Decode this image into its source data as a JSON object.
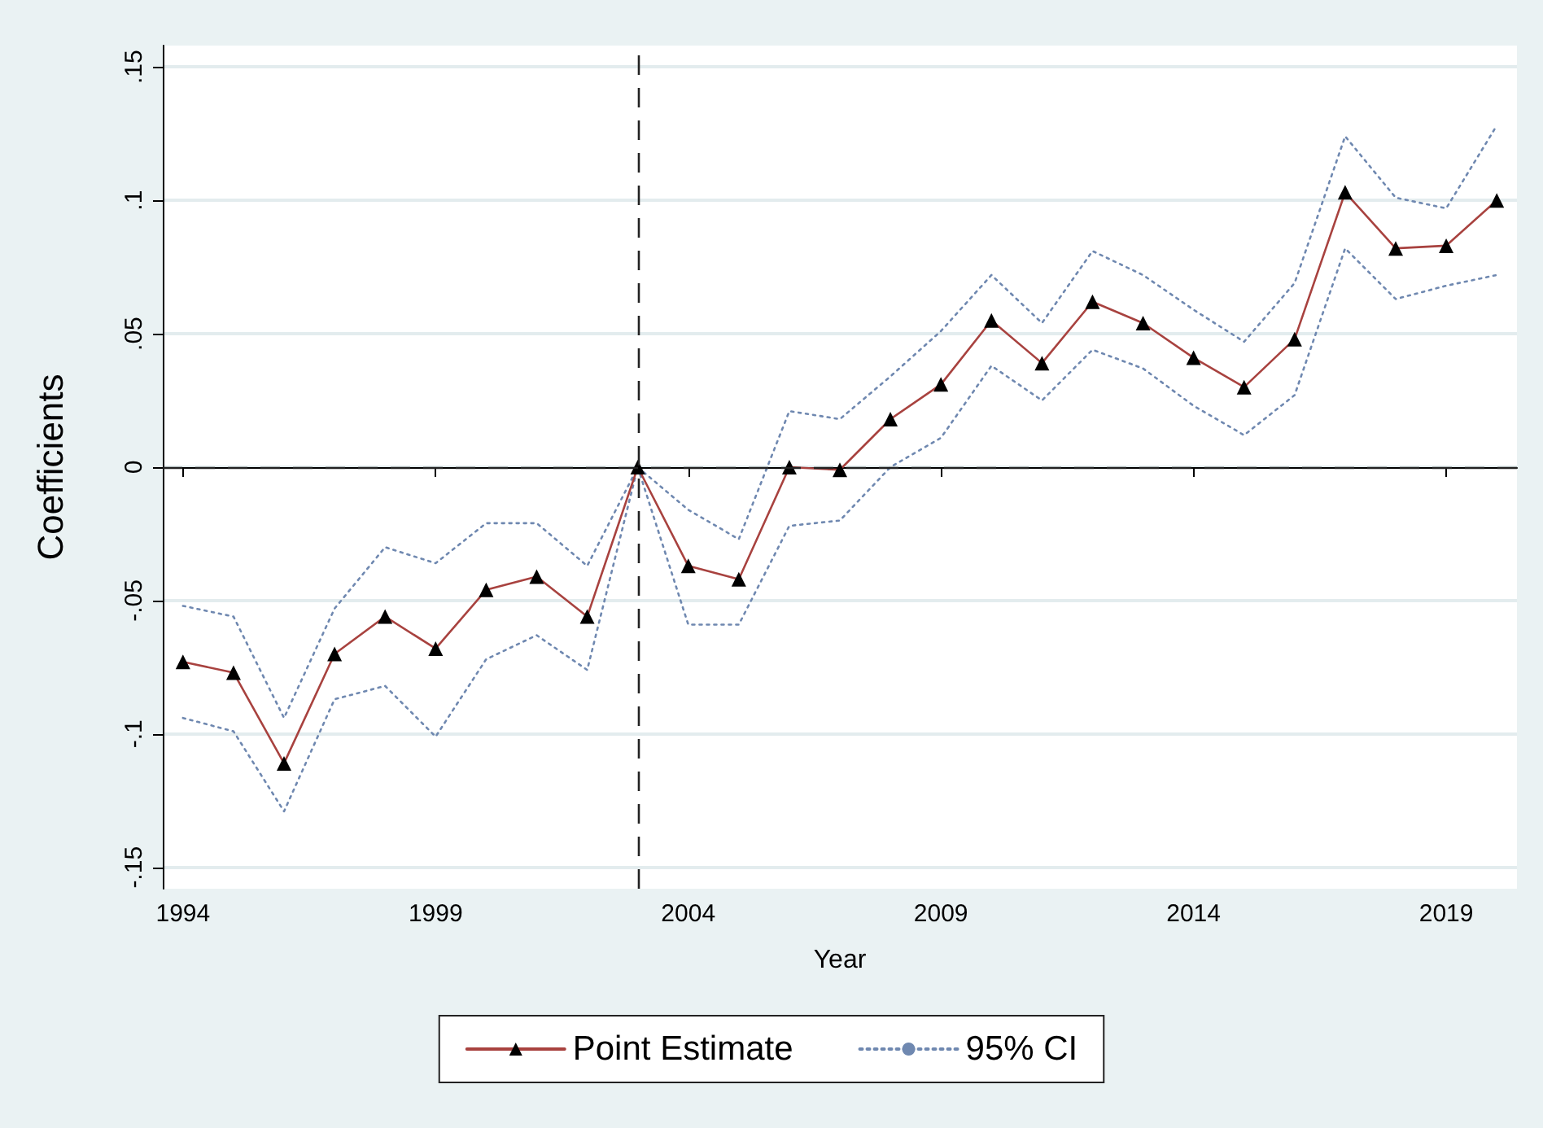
{
  "chart_data": {
    "type": "line",
    "xlabel": "Year",
    "ylabel": "Coefficients",
    "x": [
      1994,
      1995,
      1996,
      1997,
      1998,
      1999,
      2000,
      2001,
      2002,
      2003,
      2004,
      2005,
      2006,
      2007,
      2008,
      2009,
      2010,
      2011,
      2012,
      2013,
      2014,
      2015,
      2016,
      2017,
      2018,
      2019,
      2020
    ],
    "series": [
      {
        "name": "Point Estimate",
        "color": "#a8423f",
        "marker": "triangle",
        "line_style": "solid",
        "values": [
          -0.073,
          -0.077,
          -0.111,
          -0.07,
          -0.056,
          -0.068,
          -0.046,
          -0.041,
          -0.056,
          0,
          -0.037,
          -0.042,
          0,
          -0.001,
          0.018,
          0.031,
          0.055,
          0.039,
          0.062,
          0.054,
          0.041,
          0.03,
          0.048,
          0.103,
          0.082,
          0.083,
          0.1
        ]
      },
      {
        "name": "95% CI",
        "color": "#6f88b0",
        "marker": "none",
        "line_style": "dotted",
        "values": [
          -0.052,
          -0.056,
          -0.094,
          -0.053,
          -0.03,
          -0.036,
          -0.021,
          -0.021,
          -0.037,
          0,
          -0.016,
          -0.027,
          0.021,
          0.018,
          0.034,
          0.051,
          0.072,
          0.054,
          0.081,
          0.072,
          0.059,
          0.047,
          0.069,
          0.124,
          0.101,
          0.097,
          0.128
        ]
      },
      {
        "color": "#6f88b0",
        "marker": "none",
        "line_style": "dotted",
        "values": [
          -0.094,
          -0.099,
          -0.129,
          -0.087,
          -0.082,
          -0.101,
          -0.072,
          -0.063,
          -0.076,
          0,
          -0.059,
          -0.059,
          -0.022,
          -0.02,
          0,
          0.011,
          0.038,
          0.025,
          0.044,
          0.037,
          0.023,
          0.012,
          0.027,
          0.082,
          0.063,
          0.068,
          0.072
        ]
      }
    ],
    "xlim": [
      1993.6,
      2020.4
    ],
    "xticks": [
      1994,
      1999,
      2004,
      2009,
      2014,
      2019
    ],
    "ylim": [
      -0.158,
      0.158
    ],
    "yticks": [
      {
        "value": -0.15,
        "label": "-.15"
      },
      {
        "value": -0.1,
        "label": "-.1"
      },
      {
        "value": -0.05,
        "label": "-.05"
      },
      {
        "value": 0,
        "label": "0"
      },
      {
        "value": 0.05,
        "label": ".05"
      },
      {
        "value": 0.1,
        "label": ".1"
      },
      {
        "value": 0.15,
        "label": ".15"
      }
    ],
    "ref_lines": [
      {
        "axis": "x",
        "value": 2003,
        "color": "#222222",
        "line_style": "dashed"
      },
      {
        "axis": "y",
        "value": 0,
        "color": "#222222",
        "line_style": "dashed"
      }
    ],
    "grid": "y",
    "legend": "bottom"
  }
}
